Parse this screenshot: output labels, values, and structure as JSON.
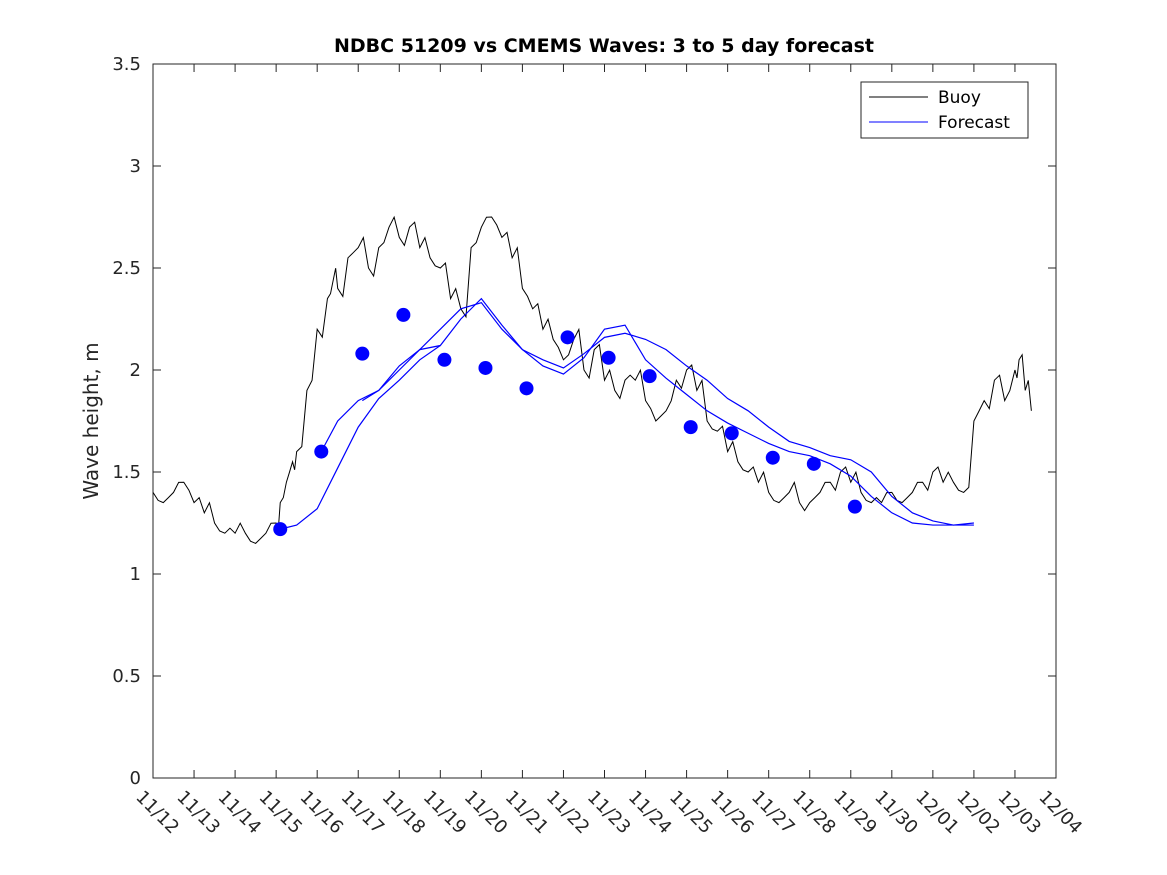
{
  "chart_data": {
    "type": "line",
    "title": "NDBC 51209 vs CMEMS Waves: 3 to 5 day forecast",
    "xlabel": "",
    "ylabel": "Wave height, m",
    "xlim": [
      0,
      22
    ],
    "ylim": [
      0,
      3.5
    ],
    "yticks": [
      0,
      0.5,
      1,
      1.5,
      2,
      2.5,
      3,
      3.5
    ],
    "ytick_labels": [
      "0",
      "0.5",
      "1",
      "1.5",
      "2",
      "2.5",
      "3",
      "3.5"
    ],
    "xtick_labels": [
      "11/12",
      "11/13",
      "11/14",
      "11/15",
      "11/16",
      "11/17",
      "11/18",
      "11/19",
      "11/20",
      "11/21",
      "11/22",
      "11/23",
      "11/24",
      "11/25",
      "11/26",
      "11/27",
      "11/28",
      "11/29",
      "11/30",
      "12/01",
      "12/02",
      "12/03",
      "12/04"
    ],
    "legend": {
      "position": "top-right",
      "entries": [
        {
          "label": "Buoy",
          "color": "#000000"
        },
        {
          "label": "Forecast",
          "color": "#0000ff"
        }
      ]
    },
    "series": [
      {
        "name": "Buoy",
        "color": "#000000",
        "x": [
          0,
          0.25,
          0.5,
          0.75,
          1,
          1.25,
          1.5,
          1.75,
          2,
          2.25,
          2.5,
          2.75,
          3,
          3.1,
          3.25,
          3.4,
          3.5,
          3.75,
          4,
          4.25,
          4.4,
          4.5,
          4.75,
          5,
          5.25,
          5.5,
          5.75,
          6,
          6.25,
          6.5,
          6.75,
          7,
          7.25,
          7.5,
          7.75,
          8,
          8.25,
          8.5,
          8.75,
          9,
          9.25,
          9.5,
          9.75,
          10,
          10.25,
          10.5,
          10.75,
          11,
          11.25,
          11.5,
          11.75,
          12,
          12.25,
          12.5,
          12.75,
          13,
          13.25,
          13.5,
          13.75,
          14,
          14.25,
          14.5,
          14.75,
          15,
          15.25,
          15.5,
          15.75,
          16,
          16.25,
          16.5,
          16.75,
          17,
          17.25,
          17.5,
          17.75,
          18,
          18.25,
          18.5,
          18.75,
          19,
          19.25,
          19.5,
          19.75,
          20,
          20.25,
          20.5,
          20.75,
          21,
          21.1,
          21.25,
          21.4
        ],
        "y": [
          1.4,
          1.35,
          1.4,
          1.45,
          1.35,
          1.3,
          1.25,
          1.2,
          1.2,
          1.2,
          1.15,
          1.2,
          1.25,
          1.35,
          1.45,
          1.55,
          1.6,
          1.9,
          2.2,
          2.35,
          2.45,
          2.4,
          2.55,
          2.6,
          2.5,
          2.6,
          2.7,
          2.65,
          2.7,
          2.6,
          2.55,
          2.5,
          2.35,
          2.3,
          2.6,
          2.7,
          2.75,
          2.65,
          2.55,
          2.4,
          2.3,
          2.2,
          2.15,
          2.05,
          2.15,
          2.0,
          2.1,
          1.95,
          1.9,
          1.95,
          1.95,
          1.85,
          1.75,
          1.8,
          1.95,
          2.0,
          1.9,
          1.75,
          1.7,
          1.6,
          1.55,
          1.5,
          1.45,
          1.4,
          1.35,
          1.4,
          1.35,
          1.35,
          1.4,
          1.45,
          1.5,
          1.45,
          1.4,
          1.35,
          1.35,
          1.4,
          1.35,
          1.4,
          1.45,
          1.5,
          1.45,
          1.45,
          1.4,
          1.75,
          1.85,
          1.95,
          1.85,
          2.0,
          2.05,
          1.9,
          1.8
        ]
      },
      {
        "name": "Forecast",
        "color": "#0000ff",
        "segments": [
          {
            "x": [
              3.1,
              3.5,
              4,
              4.5,
              5,
              5.5,
              6,
              6.5,
              7
            ],
            "y": [
              1.22,
              1.24,
              1.32,
              1.52,
              1.72,
              1.86,
              1.95,
              2.05,
              2.12
            ]
          },
          {
            "x": [
              4.1,
              4.5,
              5,
              5.5,
              6,
              6.5,
              7,
              7.5,
              8,
              8.5,
              9,
              9.5,
              10,
              10.5,
              11,
              11.5,
              12,
              12.5,
              13,
              13.5,
              14,
              14.5,
              15,
              15.5,
              16,
              16.5,
              17,
              17.5,
              18,
              18.5,
              19,
              19.5,
              20
            ],
            "y": [
              1.6,
              1.75,
              1.85,
              1.9,
              2.0,
              2.1,
              2.12,
              2.25,
              2.35,
              2.22,
              2.1,
              2.05,
              2.01,
              2.08,
              2.16,
              2.18,
              2.15,
              2.1,
              2.02,
              1.95,
              1.86,
              1.8,
              1.72,
              1.65,
              1.62,
              1.58,
              1.56,
              1.5,
              1.38,
              1.3,
              1.26,
              1.24,
              1.25
            ]
          },
          {
            "x": [
              5.1,
              5.5,
              6,
              6.5,
              7,
              7.5,
              8,
              8.5,
              9,
              9.5,
              10,
              10.5,
              11,
              11.5,
              12,
              12.5,
              13,
              13.5,
              14,
              14.5,
              15,
              15.5,
              16,
              16.5,
              17,
              17.5,
              18,
              18.5,
              19,
              19.5,
              20
            ],
            "y": [
              1.85,
              1.9,
              2.02,
              2.1,
              2.2,
              2.3,
              2.33,
              2.2,
              2.1,
              2.02,
              1.98,
              2.06,
              2.2,
              2.22,
              2.05,
              1.96,
              1.88,
              1.8,
              1.74,
              1.69,
              1.64,
              1.6,
              1.58,
              1.54,
              1.48,
              1.38,
              1.3,
              1.25,
              1.24,
              1.24,
              1.24
            ]
          }
        ],
        "markers": {
          "x": [
            3.1,
            4.1,
            5.1,
            6.1,
            7.1,
            8.1,
            9.1,
            10.1,
            11.1,
            12.1,
            13.1,
            14.1,
            15.1,
            16.1,
            17.1,
            18.1
          ],
          "y": [
            1.22,
            1.6,
            2.08,
            2.27,
            2.05,
            2.01,
            1.91,
            2.16,
            2.06,
            1.97,
            1.72,
            1.69,
            1.57,
            1.54,
            1.33,
            null
          ]
        }
      }
    ]
  }
}
